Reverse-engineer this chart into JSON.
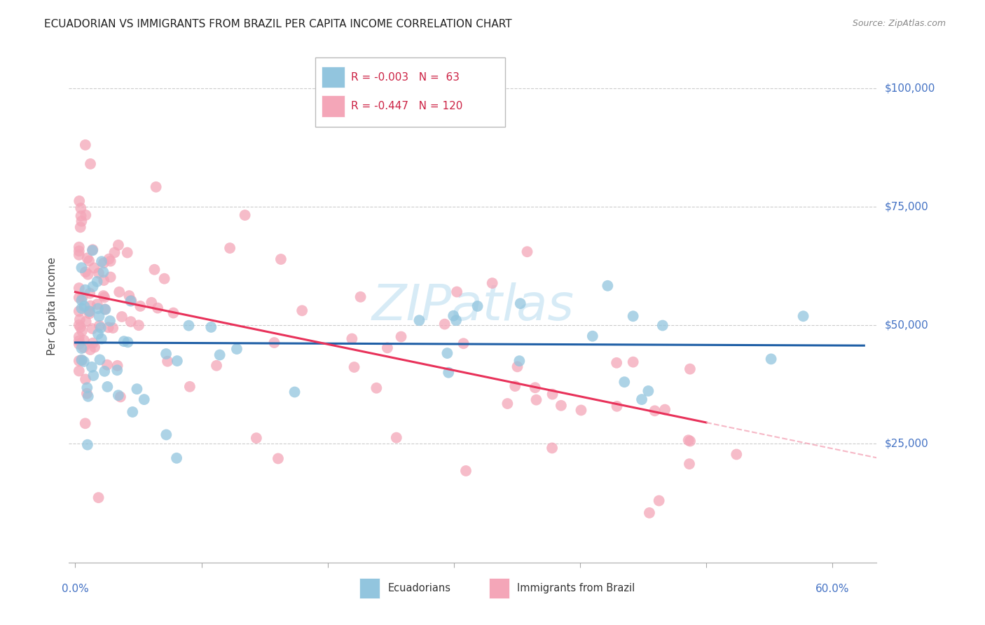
{
  "title": "ECUADORIAN VS IMMIGRANTS FROM BRAZIL PER CAPITA INCOME CORRELATION CHART",
  "source": "Source: ZipAtlas.com",
  "ylabel": "Per Capita Income",
  "ylim": [
    0,
    108000
  ],
  "xlim": [
    -0.005,
    0.635
  ],
  "legend_blue_r": "-0.003",
  "legend_blue_n": "63",
  "legend_pink_r": "-0.447",
  "legend_pink_n": "120",
  "blue_color": "#92c5de",
  "pink_color": "#f4a6b8",
  "blue_line_color": "#1f5fa6",
  "pink_line_color": "#e8325a",
  "pink_dash_color": "#f4a6b8",
  "grid_color": "#cccccc",
  "title_color": "#222222",
  "axis_label_color": "#4472c4",
  "ytick_vals": [
    25000,
    50000,
    75000,
    100000
  ],
  "ytick_labels": [
    "$25,000",
    "$50,000",
    "$75,000",
    "$100,000"
  ],
  "watermark_color": "#d0e8f5",
  "blue_intercept": 47500,
  "blue_slope": -500,
  "pink_intercept": 57000,
  "pink_slope": -55000
}
